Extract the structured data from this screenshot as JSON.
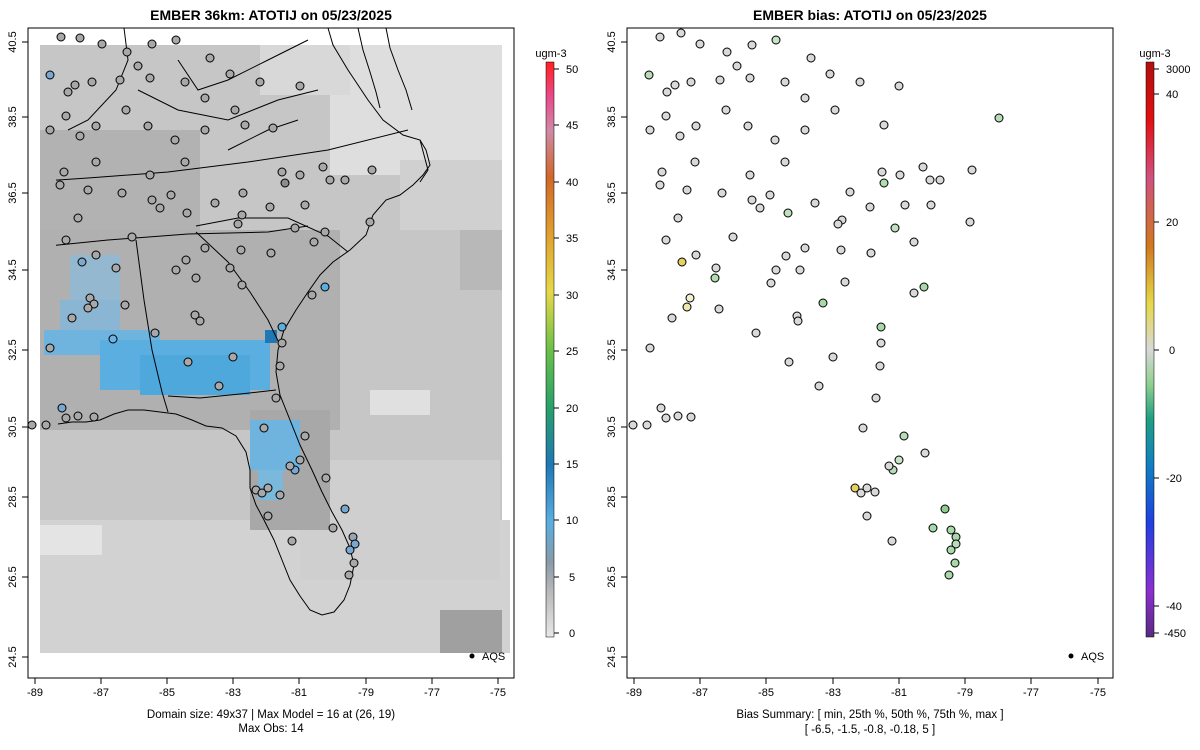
{
  "left_panel": {
    "title": "EMBER 36km: ATOTIJ on 05/23/2025",
    "legend": {
      "unit": "ugm-3",
      "labels": [
        "50",
        "45",
        "40",
        "35",
        "30",
        "25",
        "20",
        "15",
        "10",
        "5",
        "0"
      ]
    },
    "network_label": "AQS",
    "caption_line1": "Domain size: 49x37 | Max Model = 16 at (26, 19)",
    "caption_line2": "Max Obs: 14"
  },
  "right_panel": {
    "title": "EMBER bias: ATOTIJ on 05/23/2025",
    "legend": {
      "unit": "ugm-3",
      "labels": [
        "3000",
        "40",
        "20",
        "0",
        "-20",
        "-40",
        "-450"
      ]
    },
    "network_label": "AQS",
    "caption_line1": "Bias Summary: [ min, 25th %, 50th %, 75th %, max ]",
    "caption_line2": "[ -6.5,   -1.5,   -0.8,   -0.18,   5 ]"
  },
  "axes": {
    "x_ticks": [
      "-89",
      "-87",
      "-85",
      "-83",
      "-81",
      "-79",
      "-77",
      "-75"
    ],
    "y_ticks": [
      "24.5",
      "26.5",
      "28.5",
      "30.5",
      "32.5",
      "34.5",
      "36.5",
      "38.5",
      "40.5"
    ]
  },
  "colors": {
    "high_conc": "#1f78b4",
    "mid_conc": "#5aaee0",
    "bias_positive": "#e8d060",
    "bias_negative": "#a8d8a8"
  }
}
